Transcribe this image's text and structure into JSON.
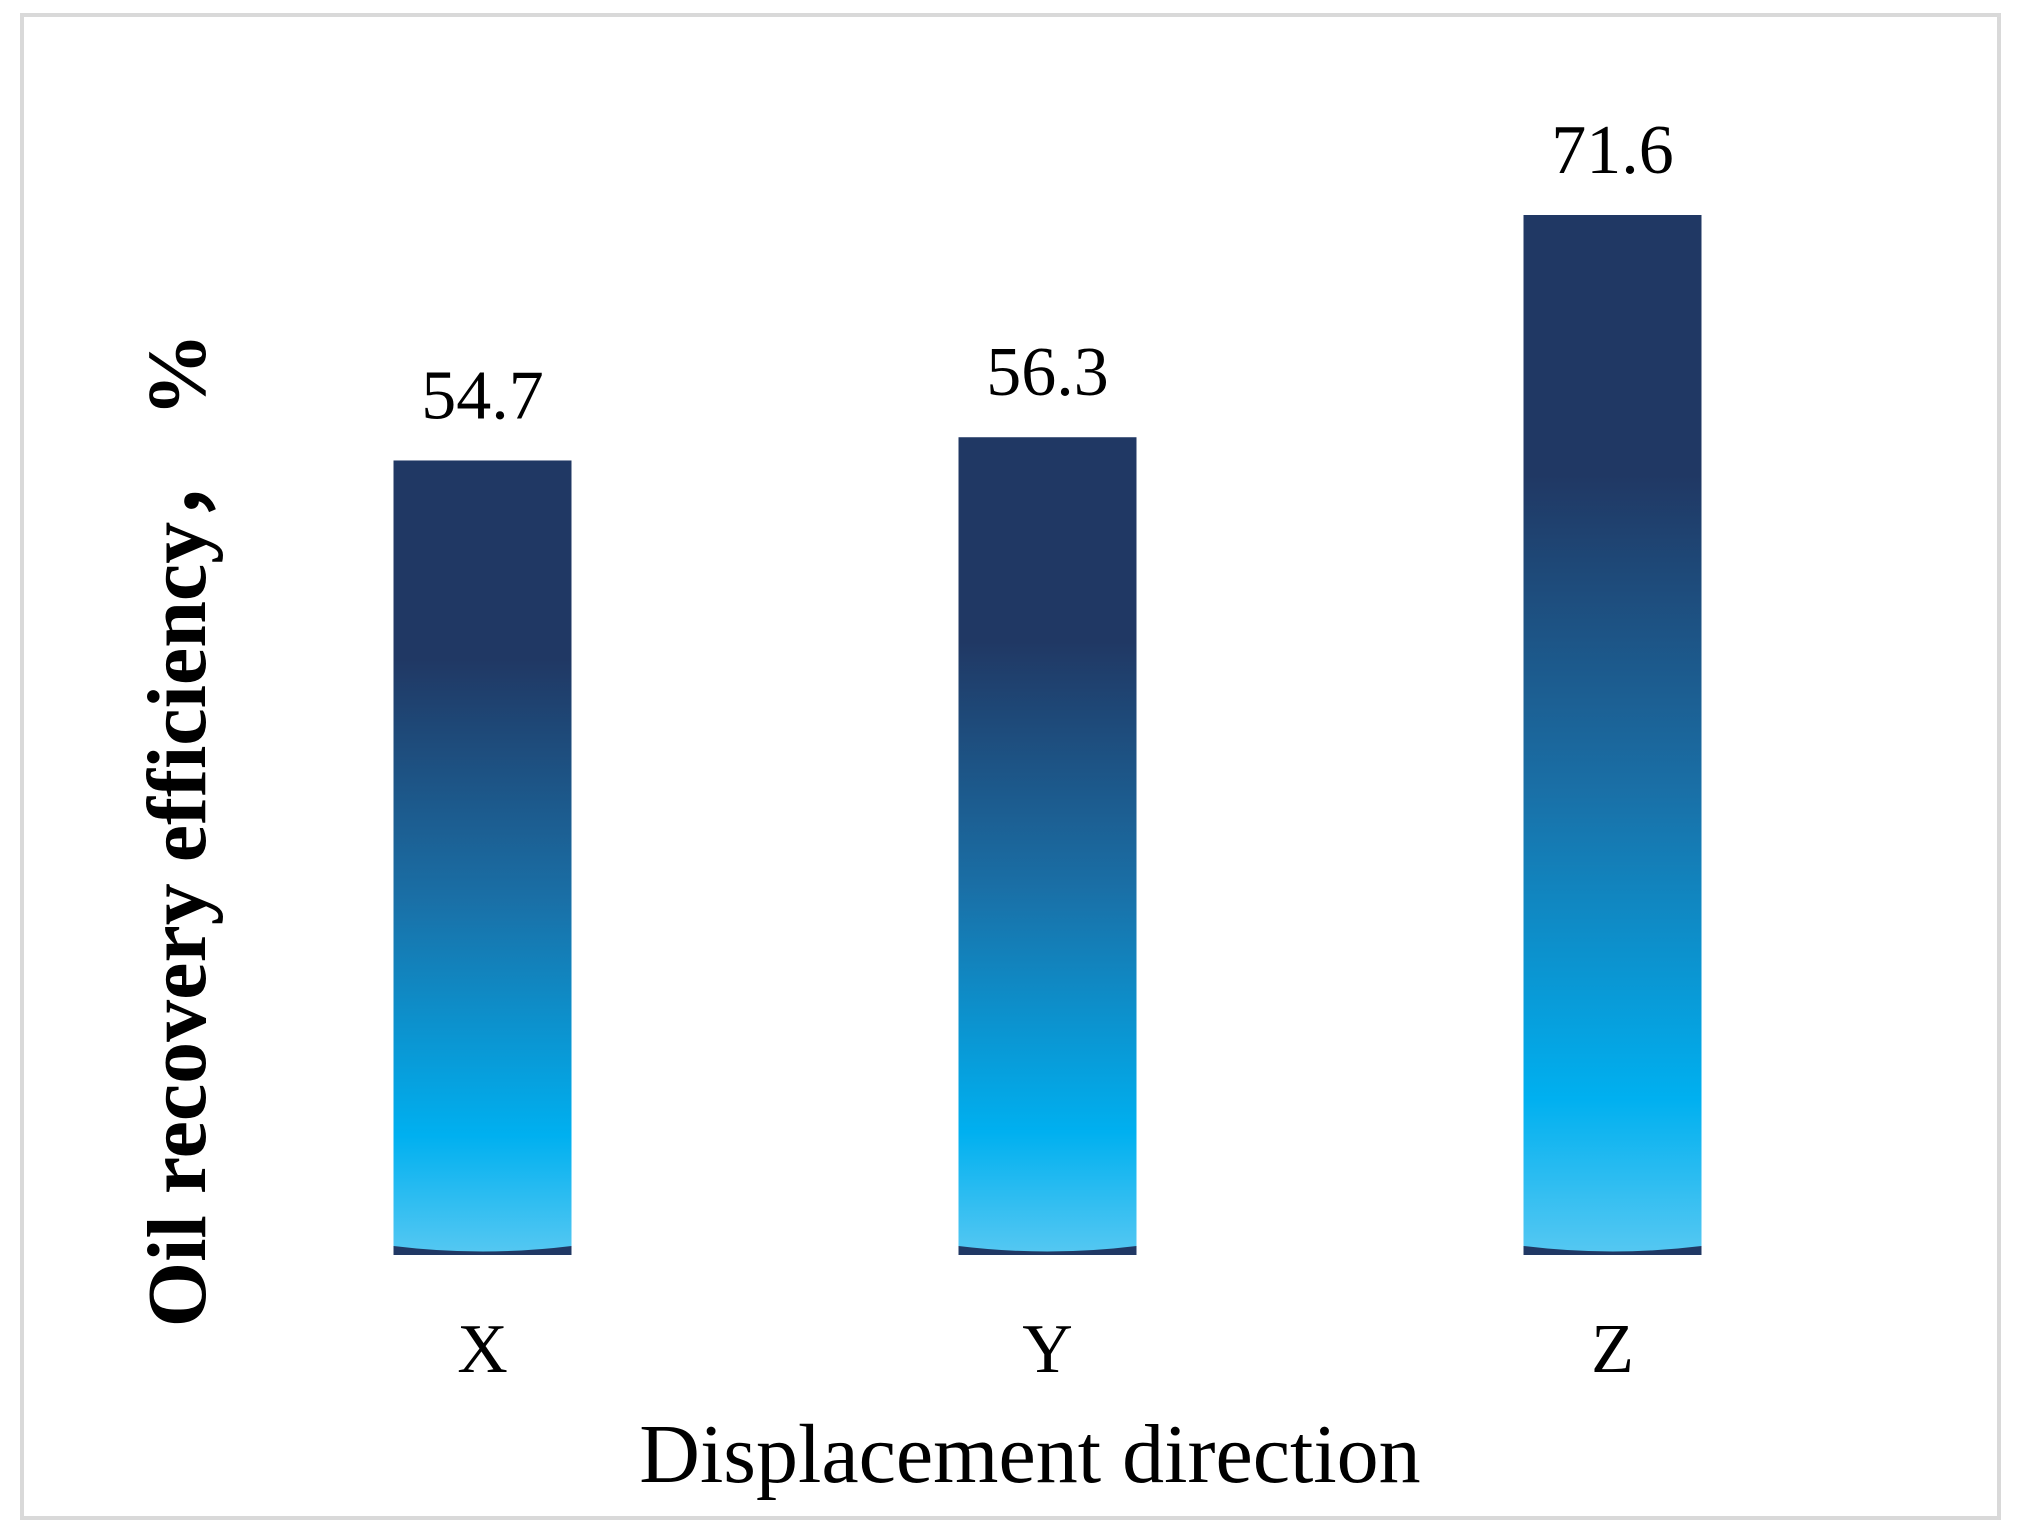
{
  "chart_data": {
    "type": "bar",
    "title": "",
    "xlabel": "Displacement direction",
    "ylabel": "Oil recovery efficiency， %",
    "categories": [
      "X",
      "Y",
      "Z"
    ],
    "values": [
      54.7,
      56.3,
      71.6
    ],
    "data_labels": [
      "54.7",
      "56.3",
      "71.6"
    ],
    "ylim": [
      0,
      80
    ],
    "grid": false,
    "legend": "none",
    "colors": {
      "bar_top": "#203864",
      "bar_mid": "#1a6fa6",
      "bar_bright": "#00b0f0",
      "bar_bottom": "#56c8f2",
      "frame": "#d9d9d9"
    }
  }
}
